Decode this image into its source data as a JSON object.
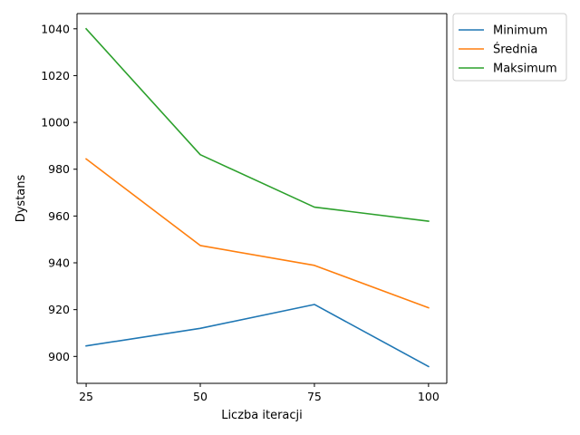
{
  "chart_data": {
    "type": "line",
    "title": "",
    "xlabel": "Liczba iteracji",
    "ylabel": "Dystans",
    "x": [
      25,
      50,
      75,
      100
    ],
    "xticks": [
      "25",
      "50",
      "75",
      "100"
    ],
    "yticks": [
      "900",
      "920",
      "940",
      "960",
      "980",
      "1000",
      "1020",
      "1040"
    ],
    "xlim": [
      23,
      104
    ],
    "ylim": [
      888.5,
      1046.5
    ],
    "grid": false,
    "legend_position": "outside-top-right",
    "series": [
      {
        "name": "Minimum",
        "color": "#1f77b4",
        "values": [
          904.5,
          912.0,
          922.2,
          895.7
        ]
      },
      {
        "name": "Średnia",
        "color": "#ff7f0e",
        "values": [
          984.4,
          947.4,
          938.9,
          920.8
        ]
      },
      {
        "name": "Maksimum",
        "color": "#2ca02c",
        "values": [
          1040.0,
          986.2,
          963.8,
          957.8
        ]
      }
    ]
  }
}
